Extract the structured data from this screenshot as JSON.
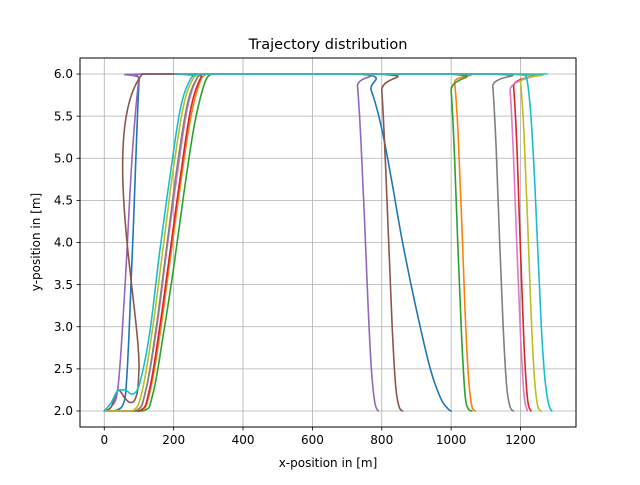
{
  "chart_data": {
    "type": "line",
    "title": "Trajectory distribution",
    "xlabel": "x-position in [m]",
    "ylabel": "y-position in [m]",
    "xlim": [
      -70,
      1360
    ],
    "ylim": [
      1.81,
      6.19
    ],
    "xticks": [
      0,
      200,
      400,
      600,
      800,
      1000,
      1200
    ],
    "yticks": [
      2.0,
      2.5,
      3.0,
      3.5,
      4.0,
      4.5,
      5.0,
      5.5,
      6.0
    ],
    "xtick_labels": [
      "0",
      "200",
      "400",
      "600",
      "800",
      "1000",
      "1200"
    ],
    "ytick_labels": [
      "2.0",
      "2.5",
      "3.0",
      "3.5",
      "4.0",
      "4.5",
      "5.0",
      "5.5",
      "6.0"
    ],
    "grid": true,
    "legend": "none",
    "series": [
      {
        "color": "#1f77b4",
        "x": [
          0,
          30,
          60,
          80,
          100,
          110,
          300,
          740,
          770,
          800,
          830,
          860,
          900,
          940,
          970,
          990,
          1000
        ],
        "y": [
          2.0,
          2.0,
          2.15,
          3.8,
          5.9,
          6.0,
          6.0,
          6.0,
          5.8,
          5.35,
          4.7,
          4.0,
          3.2,
          2.5,
          2.15,
          2.03,
          2.0
        ]
      },
      {
        "color": "#ff7f0e",
        "x": [
          0,
          100,
          130,
          160,
          190,
          220,
          250,
          280,
          300,
          310,
          1000,
          1010,
          1020,
          1030,
          1040,
          1050,
          1060,
          1070
        ],
        "y": [
          2.0,
          2.0,
          2.2,
          2.9,
          3.8,
          4.7,
          5.5,
          5.95,
          6.0,
          6.0,
          6.0,
          5.9,
          5.3,
          4.3,
          3.2,
          2.4,
          2.05,
          2.0
        ]
      },
      {
        "color": "#2ca02c",
        "x": [
          0,
          110,
          140,
          170,
          200,
          230,
          260,
          290,
          310,
          320,
          990,
          1000,
          1010,
          1020,
          1030,
          1040,
          1050,
          1060
        ],
        "y": [
          2.0,
          2.0,
          2.2,
          2.9,
          3.7,
          4.6,
          5.4,
          5.9,
          6.0,
          6.0,
          6.0,
          5.8,
          5.0,
          3.9,
          2.9,
          2.2,
          2.02,
          2.0
        ]
      },
      {
        "color": "#d62728",
        "x": [
          0,
          100,
          130,
          160,
          190,
          220,
          250,
          280,
          300,
          1170,
          1180,
          1190,
          1200,
          1210,
          1220,
          1230
        ],
        "y": [
          2.0,
          2.0,
          2.25,
          3.0,
          3.9,
          4.8,
          5.6,
          5.97,
          6.0,
          6.0,
          5.85,
          5.1,
          3.9,
          2.8,
          2.15,
          2.0
        ]
      },
      {
        "color": "#9467bd",
        "x": [
          0,
          20,
          40,
          60,
          80,
          100,
          110,
          720,
          730,
          740,
          750,
          760,
          770,
          780,
          790
        ],
        "y": [
          2.0,
          2.05,
          2.3,
          3.5,
          5.0,
          5.95,
          6.0,
          6.0,
          5.85,
          5.2,
          4.3,
          3.3,
          2.5,
          2.1,
          2.0
        ]
      },
      {
        "color": "#8c564b",
        "x": [
          0,
          20,
          40,
          60,
          75,
          90,
          100,
          110,
          790,
          800,
          810,
          820,
          830,
          840,
          850,
          860
        ],
        "y": [
          2.0,
          2.05,
          2.25,
          2.15,
          2.1,
          2.15,
          2.5,
          6.0,
          6.0,
          5.8,
          5.0,
          4.0,
          3.0,
          2.3,
          2.05,
          2.0
        ]
      },
      {
        "color": "#e377c2",
        "x": [
          0,
          90,
          120,
          150,
          180,
          210,
          240,
          270,
          290,
          300,
          1160,
          1170,
          1180,
          1190,
          1200,
          1210,
          1220
        ],
        "y": [
          2.0,
          2.0,
          2.25,
          2.95,
          3.9,
          4.8,
          5.6,
          5.97,
          6.0,
          6.0,
          6.0,
          5.8,
          5.0,
          3.9,
          2.9,
          2.2,
          2.0
        ]
      },
      {
        "color": "#7f7f7f",
        "x": [
          0,
          90,
          120,
          150,
          180,
          210,
          240,
          270,
          290,
          300,
          1110,
          1120,
          1130,
          1140,
          1150,
          1160,
          1170,
          1180
        ],
        "y": [
          2.0,
          2.0,
          2.25,
          3.0,
          3.95,
          4.9,
          5.65,
          5.97,
          6.0,
          6.0,
          6.0,
          5.85,
          5.1,
          4.0,
          3.0,
          2.3,
          2.05,
          2.0
        ]
      },
      {
        "color": "#bcbd22",
        "x": [
          0,
          80,
          110,
          140,
          170,
          200,
          230,
          260,
          280,
          290,
          1190,
          1200,
          1210,
          1220,
          1230,
          1240,
          1250,
          1260
        ],
        "y": [
          2.0,
          2.0,
          2.25,
          3.0,
          3.95,
          4.9,
          5.65,
          5.97,
          6.0,
          6.0,
          6.0,
          5.9,
          5.3,
          4.3,
          3.2,
          2.4,
          2.05,
          2.0
        ]
      },
      {
        "color": "#17becf",
        "x": [
          0,
          20,
          40,
          60,
          80,
          100,
          130,
          160,
          190,
          220,
          250,
          270,
          280,
          1200,
          1210,
          1220,
          1230,
          1240,
          1250,
          1260,
          1270,
          1280,
          1290
        ],
        "y": [
          2.0,
          2.1,
          2.25,
          2.25,
          2.2,
          2.3,
          2.9,
          3.9,
          4.8,
          5.6,
          5.95,
          6.0,
          6.0,
          6.0,
          6.0,
          5.9,
          5.5,
          4.8,
          3.9,
          3.0,
          2.4,
          2.1,
          2.0
        ]
      }
    ]
  }
}
